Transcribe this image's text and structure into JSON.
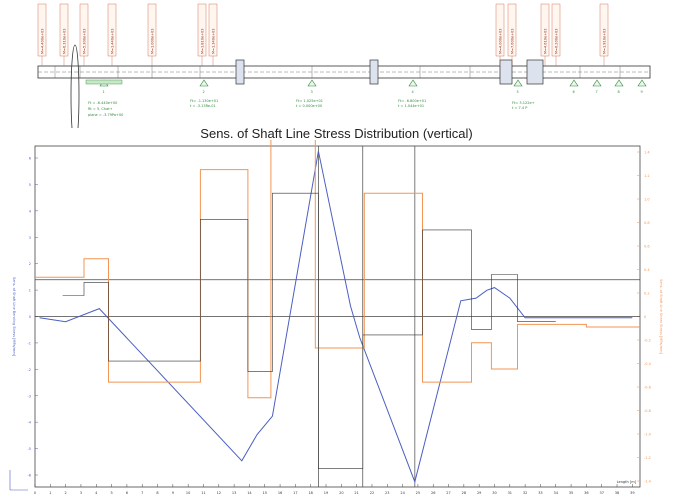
{
  "shaft_diagram": {
    "top_labels": [
      "M=4.400e+03",
      "M=6.310e+03",
      "M=5.300e+03",
      "M=1.440e+03",
      "M=1.000e+03",
      "M=1.810e+03",
      "M=1.340e+03",
      "M=4.000e+03",
      "M=7.600e+03",
      "M=4.610e+03",
      "M=6.200e+03",
      "M=1.910e+03"
    ],
    "bearing_numbers": [
      "1",
      "2",
      "3",
      "4",
      "5",
      "6",
      "7",
      "8",
      "9"
    ],
    "load_notes": [
      "Ft = -6.440e+00",
      "Rt = 5, Chat+",
      "plane = -3.79Pa+00",
      "Ft= -1.130e+01",
      "t = -3.13Re-01",
      "Ft= 1.025e+01",
      "t = 0.000e+00",
      "Ft= -6.800e+01",
      "t = 1.044e+01",
      "Ft= 3.122e+",
      "t = 7.4 P"
    ]
  },
  "chart_data": {
    "type": "line",
    "title": "Sens. of Shaft Line Stress Distribution (vertical)",
    "ylabel_left": "Sens. of Shaft Line Bending Stress [MPa/mm]",
    "ylabel_right": "Sens. of Shaft Line Shear Stress [MPa/mm]",
    "xlabel": "Length [m]",
    "x_ticks": [
      "0",
      "1",
      "2",
      "3",
      "4",
      "5",
      "6",
      "7",
      "8",
      "9",
      "10",
      "11",
      "12",
      "13",
      "14",
      "15",
      "16",
      "17",
      "18",
      "19",
      "20",
      "21",
      "22",
      "23",
      "24",
      "25",
      "26",
      "27",
      "28",
      "29",
      "30",
      "31",
      "32",
      "33",
      "34",
      "35",
      "36",
      "37",
      "38",
      "39"
    ],
    "xlim": [
      0,
      39.5
    ],
    "ylim_left": [
      -6.5,
      6.5
    ],
    "left_y_ticks": [
      "6",
      "5",
      "4",
      "3",
      "2",
      "1",
      "0",
      "-1",
      "-2",
      "-3",
      "-4",
      "-5",
      "-6"
    ],
    "right_y_ticks": [
      "1.4",
      "1.2",
      "1.0",
      "0.8",
      "0.6",
      "0.4",
      "0.2",
      "0",
      "-0.2",
      "-0.4",
      "-0.6",
      "-0.8",
      "-1.0",
      "-1.2",
      "-1.4"
    ],
    "series": [
      {
        "color": "#4a5fc1",
        "x": [
          0.3,
          2,
          4.2,
          13.5,
          14.5,
          15.5,
          18.5,
          20.6,
          21.2,
          24.8,
          27.8,
          28.8,
          29.5,
          30,
          31,
          32,
          34,
          37,
          39
        ],
        "y": [
          -0.05,
          -0.2,
          0.3,
          -5.5,
          -4.5,
          -3.8,
          6.3,
          0.4,
          -0.8,
          -6.3,
          0.6,
          0.7,
          1.0,
          1.1,
          0.7,
          -0.05,
          -0.05,
          -0.05,
          -0.05
        ]
      },
      {
        "color": "#f29555",
        "x": [
          0,
          3.2,
          3.2,
          4.8,
          4.8,
          10.8,
          10.8,
          13.9,
          13.9,
          15.4,
          15.4,
          18.3,
          18.3,
          21.5,
          21.5,
          25.3,
          25.3,
          28.5,
          28.5,
          29.8,
          29.8,
          31.5,
          31.5,
          36,
          36,
          39.5
        ],
        "y": [
          1.5,
          1.5,
          2.2,
          2.2,
          -2.5,
          -2.5,
          5.6,
          5.6,
          -3.1,
          -3.1,
          7.2,
          7.2,
          -1.2,
          -1.2,
          4.7,
          4.7,
          -2.5,
          -2.5,
          -1.0,
          -1.0,
          -2.0,
          -2.0,
          -0.3,
          -0.3,
          -0.4,
          -0.4
        ]
      },
      {
        "color": "#333333",
        "x": [
          1.8,
          3.2,
          3.2,
          4.8,
          4.8,
          10.8,
          10.8,
          12.5,
          13.9,
          13.9,
          15.5,
          15.5,
          18.5,
          18.5,
          21.4,
          21.4,
          25.3,
          25.3,
          28.5,
          28.5,
          29.8,
          29.8,
          31.5,
          31.5,
          34
        ],
        "y": [
          0.8,
          0.8,
          1.3,
          1.3,
          -1.7,
          -1.7,
          3.7,
          3.7,
          3.7,
          -2.1,
          -2.1,
          4.7,
          4.7,
          -5.8,
          -5.8,
          -0.7,
          -0.7,
          3.3,
          3.3,
          -0.5,
          -0.5,
          1.6,
          1.6,
          -0.2,
          -0.2
        ]
      }
    ],
    "reference_lines": [
      0,
      1.4
    ],
    "vertical_markers": [
      18.5,
      21.4,
      24.8
    ]
  }
}
